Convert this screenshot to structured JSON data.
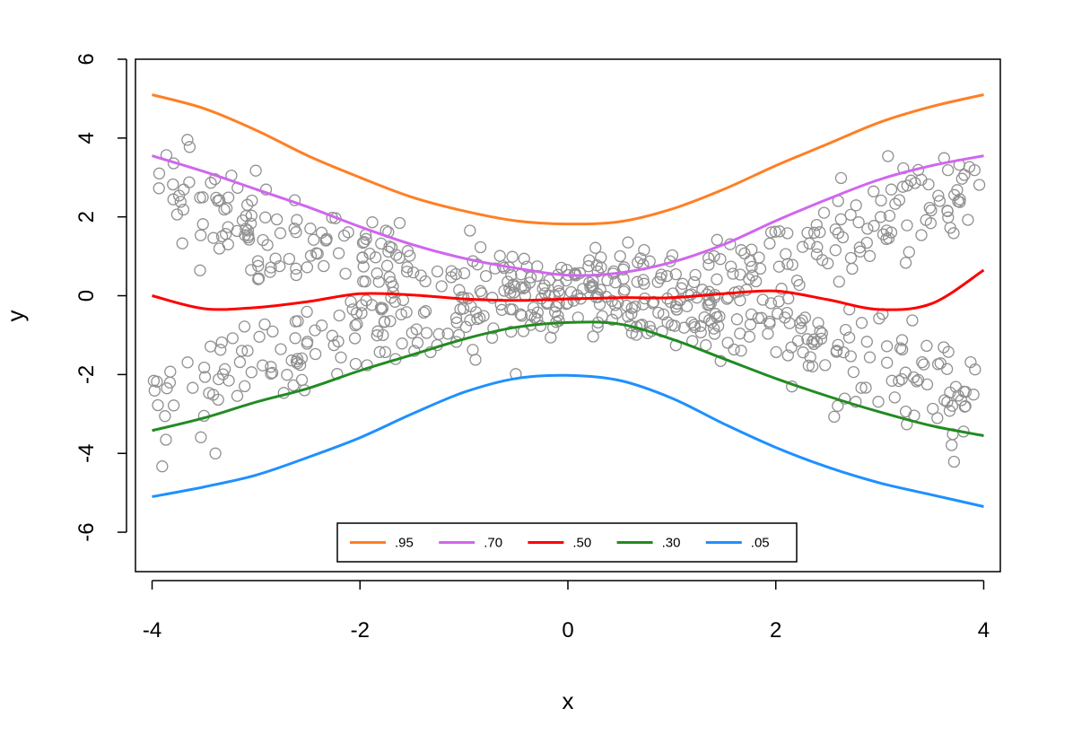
{
  "chart_data": {
    "type": "scatter",
    "title": "",
    "xlabel": "x",
    "ylabel": "y",
    "xlim": [
      -4.16,
      4.16
    ],
    "ylim": [
      -7.0,
      6.0
    ],
    "x_ticks": [
      -4,
      -2,
      0,
      2,
      4
    ],
    "y_ticks": [
      -6,
      -4,
      -2,
      0,
      2,
      4,
      6
    ],
    "x_tick_labels": [
      "-4",
      "-2",
      "0",
      "2",
      "4"
    ],
    "y_tick_labels": [
      "-6",
      "-4",
      "-2",
      "0",
      "2",
      "4",
      "6"
    ],
    "grid": false,
    "legend_position": "bottom-center",
    "legend_labels": [
      ".95",
      ".70",
      ".50",
      ".30",
      ".05"
    ],
    "point_color": "#909090",
    "point_count": 700,
    "points_description": "Scatter of about 700 hollow gray circles, x spread uniformly over [-4, 4]; spread narrows near x = 0 and widens toward the edges, with roughly two clouds above and below y = 0.",
    "series": [
      {
        "label": ".95",
        "color": "#ff7f24",
        "x": [
          -4,
          -3.5,
          -3,
          -2.5,
          -2,
          -1.5,
          -1,
          -0.5,
          0,
          0.5,
          1,
          1.5,
          2,
          2.5,
          3,
          3.5,
          4
        ],
        "y": [
          5.1,
          4.75,
          4.2,
          3.55,
          3.0,
          2.5,
          2.15,
          1.9,
          1.82,
          1.88,
          2.2,
          2.7,
          3.3,
          3.85,
          4.4,
          4.8,
          5.1
        ]
      },
      {
        "label": ".70",
        "color": "#d066ee",
        "x": [
          -4,
          -3.5,
          -3,
          -2.5,
          -2,
          -1.5,
          -1,
          -0.5,
          0,
          0.5,
          1,
          1.5,
          2,
          2.5,
          3,
          3.5,
          4
        ],
        "y": [
          3.55,
          3.15,
          2.7,
          2.25,
          1.75,
          1.3,
          0.95,
          0.7,
          0.52,
          0.58,
          0.85,
          1.3,
          1.9,
          2.45,
          2.95,
          3.3,
          3.55
        ]
      },
      {
        "label": ".50",
        "color": "#ff0000",
        "x": [
          -4,
          -3.5,
          -3,
          -2.5,
          -2,
          -1.5,
          -1,
          -0.5,
          0,
          0.5,
          1,
          1.5,
          2,
          2.5,
          3,
          3.5,
          4
        ],
        "y": [
          0.0,
          -0.33,
          -0.3,
          -0.15,
          0.05,
          0.02,
          -0.08,
          -0.12,
          -0.08,
          -0.05,
          -0.05,
          0.05,
          0.12,
          -0.1,
          -0.35,
          -0.2,
          0.65
        ]
      },
      {
        "label": ".30",
        "color": "#228b22",
        "x": [
          -4,
          -3.5,
          -3,
          -2.5,
          -2,
          -1.5,
          -1,
          -0.5,
          0,
          0.5,
          1,
          1.5,
          2,
          2.5,
          3,
          3.5,
          4
        ],
        "y": [
          -3.42,
          -3.1,
          -2.7,
          -2.35,
          -1.9,
          -1.5,
          -1.1,
          -0.8,
          -0.68,
          -0.72,
          -1.1,
          -1.6,
          -2.1,
          -2.55,
          -2.95,
          -3.3,
          -3.55
        ]
      },
      {
        "label": ".05",
        "color": "#1e90ff",
        "x": [
          -4,
          -3.5,
          -3,
          -2.5,
          -2,
          -1.5,
          -1,
          -0.5,
          0,
          0.5,
          1,
          1.5,
          2,
          2.5,
          3,
          3.5,
          4
        ],
        "y": [
          -5.1,
          -4.85,
          -4.55,
          -4.1,
          -3.6,
          -3.0,
          -2.45,
          -2.1,
          -2.02,
          -2.15,
          -2.6,
          -3.25,
          -3.85,
          -4.35,
          -4.75,
          -5.05,
          -5.35
        ]
      }
    ]
  }
}
